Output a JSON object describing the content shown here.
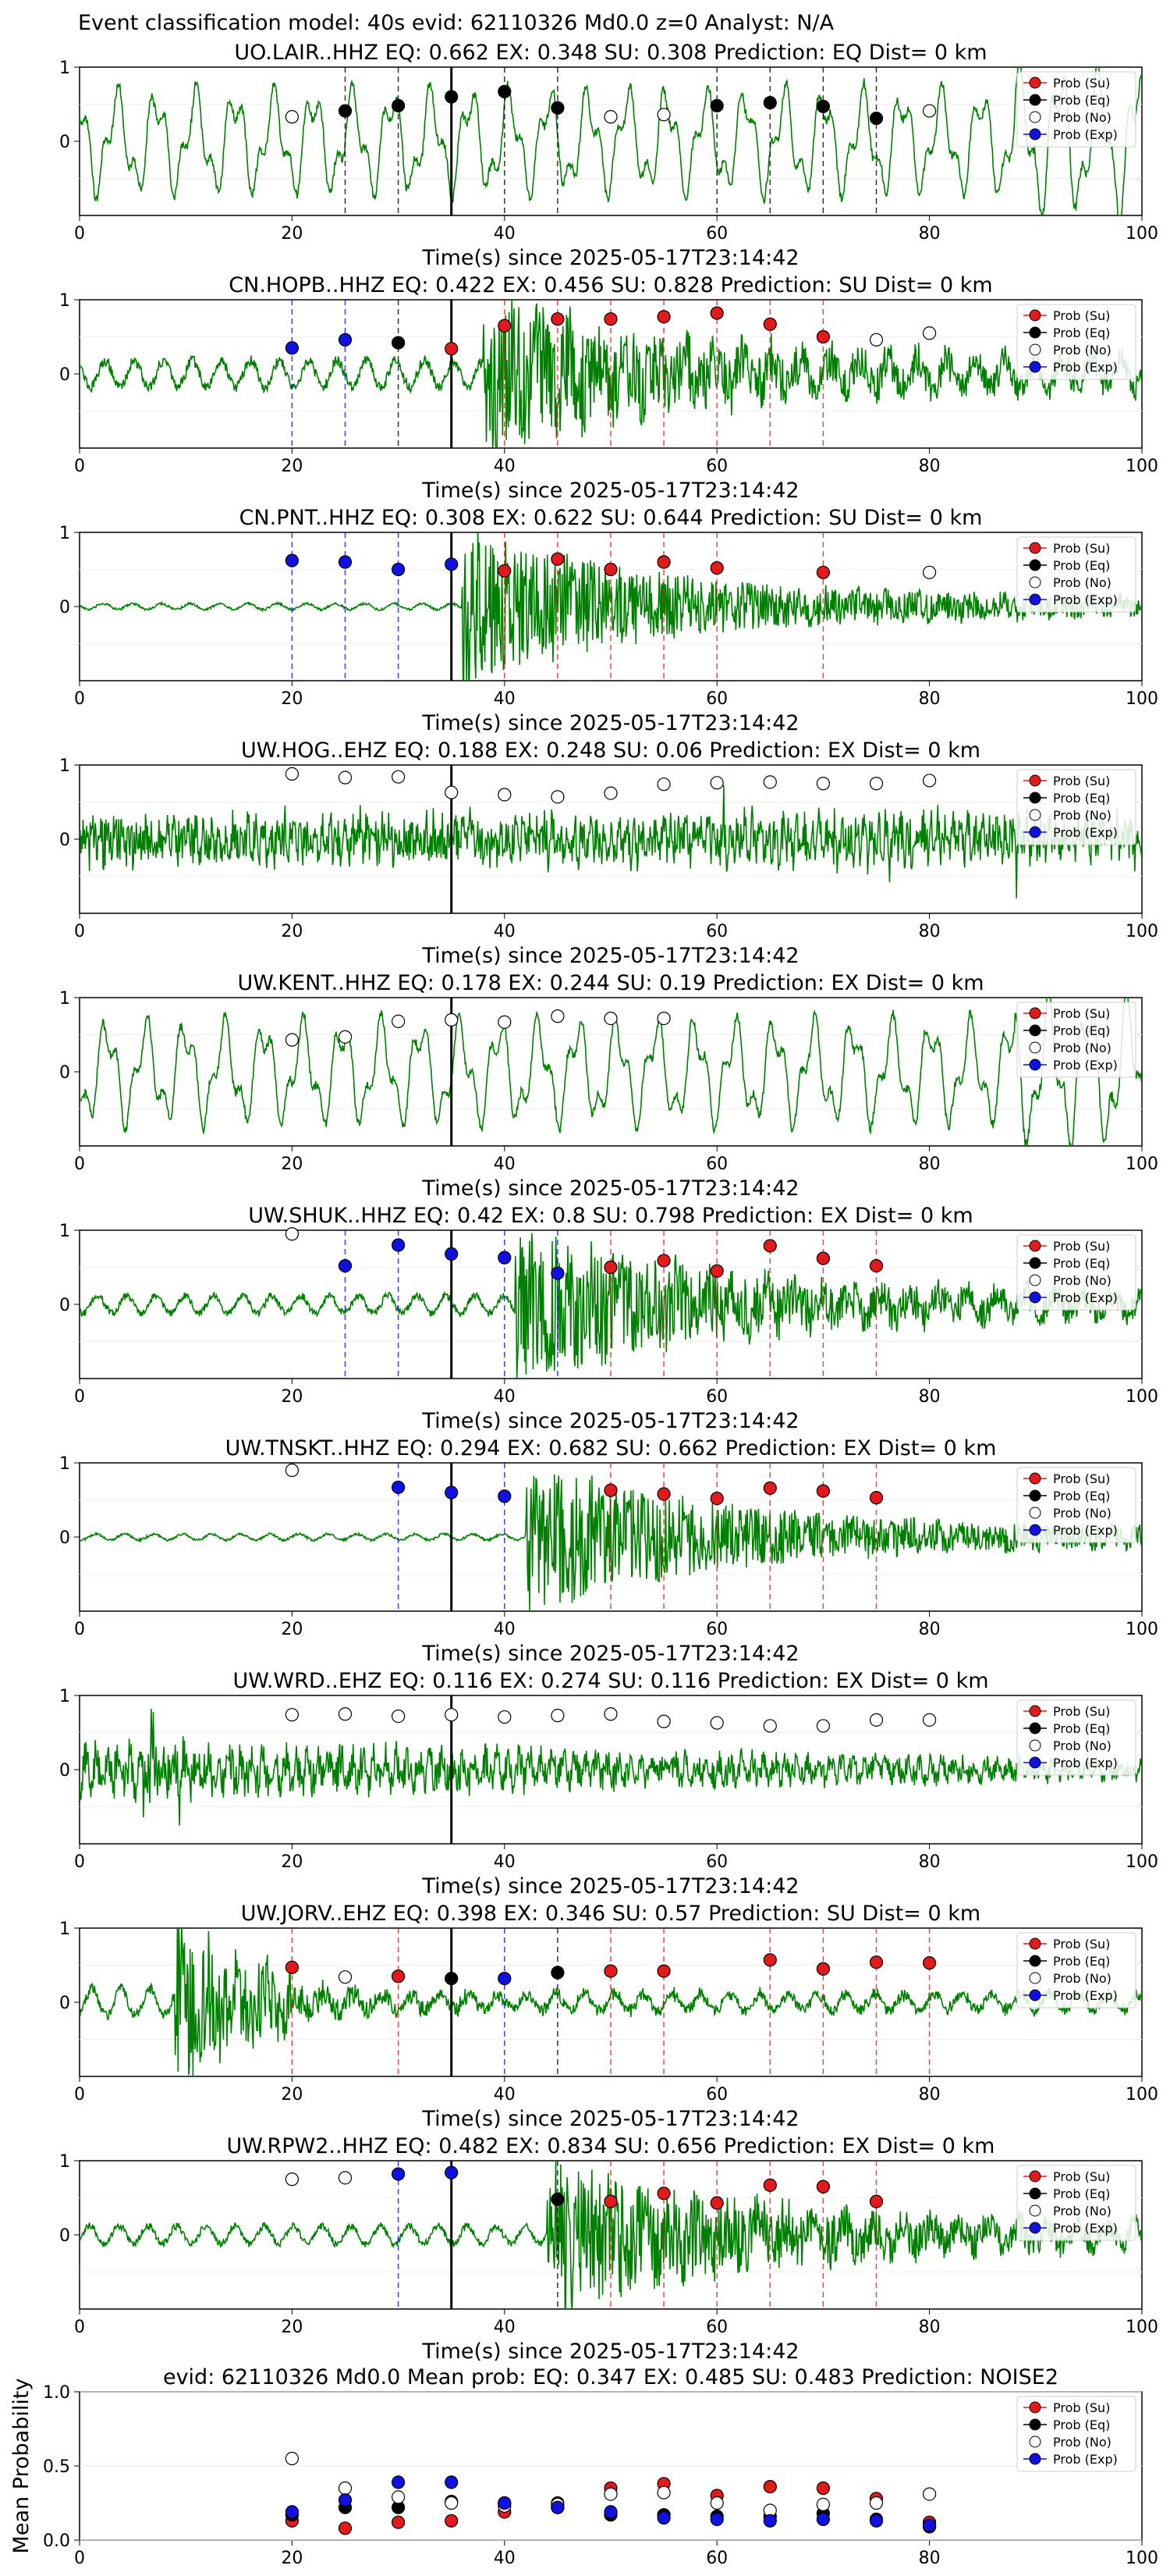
{
  "figure_title": "Event classification model: 40s evid: 62110326 Md0.0 z=0 Analyst: N/A",
  "colors": {
    "su": "#e31a1c",
    "eq": "#000000",
    "no": "#ffffff",
    "exp": "#1010e0",
    "wave": "#008000"
  },
  "legend": [
    "Prob (Su)",
    "Prob (Eq)",
    "Prob (No)",
    "Prob (Exp)"
  ],
  "chart_data": [
    {
      "type": "scatter",
      "title": "UO.LAIR..HHZ   EQ: 0.662  EX: 0.348  SU: 0.308   Prediction: EQ    Dist= 0 km",
      "xlabel": "Time(s) since 2025-05-17T23:14:42",
      "xlim": [
        0,
        100
      ],
      "ylim": [
        -1,
        1
      ],
      "xticks": [
        "0",
        "20",
        "40",
        "60",
        "80",
        "100"
      ],
      "yticks": [
        "1",
        "0"
      ],
      "waveform": {
        "style": "lowfreq",
        "onset": 0
      },
      "event_line": 35,
      "points": [
        {
          "x": 20,
          "y": 0.33,
          "cls": "no"
        },
        {
          "x": 25,
          "y": 0.41,
          "cls": "eq"
        },
        {
          "x": 30,
          "y": 0.48,
          "cls": "eq"
        },
        {
          "x": 35,
          "y": 0.6,
          "cls": "eq"
        },
        {
          "x": 40,
          "y": 0.67,
          "cls": "eq"
        },
        {
          "x": 45,
          "y": 0.45,
          "cls": "eq"
        },
        {
          "x": 50,
          "y": 0.33,
          "cls": "no"
        },
        {
          "x": 55,
          "y": 0.36,
          "cls": "no"
        },
        {
          "x": 60,
          "y": 0.48,
          "cls": "eq"
        },
        {
          "x": 65,
          "y": 0.52,
          "cls": "eq"
        },
        {
          "x": 70,
          "y": 0.47,
          "cls": "eq"
        },
        {
          "x": 75,
          "y": 0.31,
          "cls": "eq"
        },
        {
          "x": 80,
          "y": 0.41,
          "cls": "no"
        }
      ]
    },
    {
      "type": "scatter",
      "title": "CN.HOPB..HHZ   EQ: 0.422  EX: 0.456  SU: 0.828   Prediction: SU    Dist= 0 km",
      "xlabel": "Time(s) since 2025-05-17T23:14:42",
      "xlim": [
        0,
        100
      ],
      "ylim": [
        -1,
        1
      ],
      "xticks": [
        "0",
        "20",
        "40",
        "60",
        "80",
        "100"
      ],
      "yticks": [
        "1",
        "0"
      ],
      "waveform": {
        "style": "event",
        "onset": 38
      },
      "event_line": 35,
      "points": [
        {
          "x": 20,
          "y": 0.35,
          "cls": "exp"
        },
        {
          "x": 25,
          "y": 0.46,
          "cls": "exp"
        },
        {
          "x": 30,
          "y": 0.42,
          "cls": "eq"
        },
        {
          "x": 35,
          "y": 0.34,
          "cls": "su"
        },
        {
          "x": 40,
          "y": 0.65,
          "cls": "su"
        },
        {
          "x": 45,
          "y": 0.74,
          "cls": "su"
        },
        {
          "x": 50,
          "y": 0.74,
          "cls": "su"
        },
        {
          "x": 55,
          "y": 0.77,
          "cls": "su"
        },
        {
          "x": 60,
          "y": 0.82,
          "cls": "su"
        },
        {
          "x": 65,
          "y": 0.67,
          "cls": "su"
        },
        {
          "x": 70,
          "y": 0.5,
          "cls": "su"
        },
        {
          "x": 75,
          "y": 0.46,
          "cls": "no"
        },
        {
          "x": 80,
          "y": 0.55,
          "cls": "no"
        }
      ]
    },
    {
      "type": "scatter",
      "title": "CN.PNT..HHZ   EQ: 0.308  EX: 0.622  SU: 0.644   Prediction: SU    Dist= 0 km",
      "xlabel": "Time(s) since 2025-05-17T23:14:42",
      "xlim": [
        0,
        100
      ],
      "ylim": [
        -1,
        1
      ],
      "xticks": [
        "0",
        "20",
        "40",
        "60",
        "80",
        "100"
      ],
      "yticks": [
        "1",
        "0"
      ],
      "waveform": {
        "style": "quiet_event",
        "onset": 36
      },
      "event_line": 35,
      "points": [
        {
          "x": 20,
          "y": 0.62,
          "cls": "exp"
        },
        {
          "x": 25,
          "y": 0.6,
          "cls": "exp"
        },
        {
          "x": 30,
          "y": 0.5,
          "cls": "exp"
        },
        {
          "x": 35,
          "y": 0.57,
          "cls": "exp"
        },
        {
          "x": 40,
          "y": 0.48,
          "cls": "su"
        },
        {
          "x": 45,
          "y": 0.64,
          "cls": "su"
        },
        {
          "x": 50,
          "y": 0.5,
          "cls": "su"
        },
        {
          "x": 55,
          "y": 0.6,
          "cls": "su"
        },
        {
          "x": 60,
          "y": 0.52,
          "cls": "su"
        },
        {
          "x": 70,
          "y": 0.46,
          "cls": "su"
        },
        {
          "x": 80,
          "y": 0.46,
          "cls": "no"
        }
      ]
    },
    {
      "type": "scatter",
      "title": "UW.HOG..EHZ   EQ: 0.188  EX: 0.248  SU: 0.06   Prediction: EX    Dist= 0 km",
      "xlabel": "Time(s) since 2025-05-17T23:14:42",
      "xlim": [
        0,
        100
      ],
      "ylim": [
        -1,
        1
      ],
      "xticks": [
        "0",
        "20",
        "40",
        "60",
        "80",
        "100"
      ],
      "yticks": [
        "1",
        "0"
      ],
      "waveform": {
        "style": "noise",
        "onset": 0
      },
      "event_line": 35,
      "points": [
        {
          "x": 20,
          "y": 0.88,
          "cls": "no"
        },
        {
          "x": 25,
          "y": 0.83,
          "cls": "no"
        },
        {
          "x": 30,
          "y": 0.84,
          "cls": "no"
        },
        {
          "x": 35,
          "y": 0.63,
          "cls": "no"
        },
        {
          "x": 40,
          "y": 0.6,
          "cls": "no"
        },
        {
          "x": 45,
          "y": 0.57,
          "cls": "no"
        },
        {
          "x": 50,
          "y": 0.62,
          "cls": "no"
        },
        {
          "x": 55,
          "y": 0.74,
          "cls": "no"
        },
        {
          "x": 60,
          "y": 0.76,
          "cls": "no"
        },
        {
          "x": 65,
          "y": 0.77,
          "cls": "no"
        },
        {
          "x": 70,
          "y": 0.75,
          "cls": "no"
        },
        {
          "x": 75,
          "y": 0.75,
          "cls": "no"
        },
        {
          "x": 80,
          "y": 0.79,
          "cls": "no"
        }
      ]
    },
    {
      "type": "scatter",
      "title": "UW.KENT..HHZ   EQ: 0.178  EX: 0.244  SU: 0.19   Prediction: EX    Dist= 0 km",
      "xlabel": "Time(s) since 2025-05-17T23:14:42",
      "xlim": [
        0,
        100
      ],
      "ylim": [
        -1,
        1
      ],
      "xticks": [
        "0",
        "20",
        "40",
        "60",
        "80",
        "100"
      ],
      "yticks": [
        "1",
        "0"
      ],
      "waveform": {
        "style": "lowfreq",
        "onset": 0
      },
      "event_line": 35,
      "points": [
        {
          "x": 20,
          "y": 0.43,
          "cls": "no"
        },
        {
          "x": 25,
          "y": 0.47,
          "cls": "no"
        },
        {
          "x": 30,
          "y": 0.68,
          "cls": "no"
        },
        {
          "x": 35,
          "y": 0.7,
          "cls": "no"
        },
        {
          "x": 40,
          "y": 0.67,
          "cls": "no"
        },
        {
          "x": 45,
          "y": 0.75,
          "cls": "no"
        },
        {
          "x": 50,
          "y": 0.72,
          "cls": "no"
        },
        {
          "x": 55,
          "y": 0.72,
          "cls": "no"
        }
      ]
    },
    {
      "type": "scatter",
      "title": "UW.SHUK..HHZ   EQ: 0.42  EX: 0.8  SU: 0.798   Prediction: EX    Dist= 0 km",
      "xlabel": "Time(s) since 2025-05-17T23:14:42",
      "xlim": [
        0,
        100
      ],
      "ylim": [
        -1,
        1
      ],
      "xticks": [
        "0",
        "20",
        "40",
        "60",
        "80",
        "100"
      ],
      "yticks": [
        "1",
        "0"
      ],
      "waveform": {
        "style": "swell_event",
        "onset": 41
      },
      "event_line": 35,
      "points": [
        {
          "x": 20,
          "y": 0.95,
          "cls": "no"
        },
        {
          "x": 25,
          "y": 0.52,
          "cls": "exp"
        },
        {
          "x": 30,
          "y": 0.8,
          "cls": "exp"
        },
        {
          "x": 35,
          "y": 0.68,
          "cls": "exp"
        },
        {
          "x": 40,
          "y": 0.63,
          "cls": "exp"
        },
        {
          "x": 45,
          "y": 0.42,
          "cls": "exp"
        },
        {
          "x": 50,
          "y": 0.5,
          "cls": "su"
        },
        {
          "x": 55,
          "y": 0.59,
          "cls": "su"
        },
        {
          "x": 60,
          "y": 0.45,
          "cls": "su"
        },
        {
          "x": 65,
          "y": 0.79,
          "cls": "su"
        },
        {
          "x": 70,
          "y": 0.62,
          "cls": "su"
        },
        {
          "x": 75,
          "y": 0.52,
          "cls": "su"
        }
      ]
    },
    {
      "type": "scatter",
      "title": "UW.TNSKT..HHZ   EQ: 0.294  EX: 0.682  SU: 0.662   Prediction: EX    Dist= 0 km",
      "xlabel": "Time(s) since 2025-05-17T23:14:42",
      "xlim": [
        0,
        100
      ],
      "ylim": [
        -1,
        1
      ],
      "xticks": [
        "0",
        "20",
        "40",
        "60",
        "80",
        "100"
      ],
      "yticks": [
        "1",
        "0"
      ],
      "waveform": {
        "style": "quiet_event",
        "onset": 42
      },
      "event_line": 35,
      "points": [
        {
          "x": 20,
          "y": 0.9,
          "cls": "no"
        },
        {
          "x": 30,
          "y": 0.67,
          "cls": "exp"
        },
        {
          "x": 35,
          "y": 0.6,
          "cls": "exp"
        },
        {
          "x": 40,
          "y": 0.55,
          "cls": "exp"
        },
        {
          "x": 50,
          "y": 0.63,
          "cls": "su"
        },
        {
          "x": 55,
          "y": 0.58,
          "cls": "su"
        },
        {
          "x": 60,
          "y": 0.52,
          "cls": "su"
        },
        {
          "x": 65,
          "y": 0.66,
          "cls": "su"
        },
        {
          "x": 70,
          "y": 0.62,
          "cls": "su"
        },
        {
          "x": 75,
          "y": 0.53,
          "cls": "su"
        }
      ]
    },
    {
      "type": "scatter",
      "title": "UW.WRD..EHZ   EQ: 0.116  EX: 0.274  SU: 0.116   Prediction: EX    Dist= 0 km",
      "xlabel": "Time(s) since 2025-05-17T23:14:42",
      "xlim": [
        0,
        100
      ],
      "ylim": [
        -1,
        1
      ],
      "xticks": [
        "0",
        "20",
        "40",
        "60",
        "80",
        "100"
      ],
      "yticks": [
        "1",
        "0"
      ],
      "waveform": {
        "style": "noise_decay",
        "onset": 0
      },
      "event_line": 35,
      "points": [
        {
          "x": 20,
          "y": 0.74,
          "cls": "no"
        },
        {
          "x": 25,
          "y": 0.75,
          "cls": "no"
        },
        {
          "x": 30,
          "y": 0.72,
          "cls": "no"
        },
        {
          "x": 35,
          "y": 0.74,
          "cls": "no"
        },
        {
          "x": 40,
          "y": 0.71,
          "cls": "no"
        },
        {
          "x": 45,
          "y": 0.73,
          "cls": "no"
        },
        {
          "x": 50,
          "y": 0.75,
          "cls": "no"
        },
        {
          "x": 55,
          "y": 0.65,
          "cls": "no"
        },
        {
          "x": 60,
          "y": 0.63,
          "cls": "no"
        },
        {
          "x": 65,
          "y": 0.59,
          "cls": "no"
        },
        {
          "x": 70,
          "y": 0.59,
          "cls": "no"
        },
        {
          "x": 75,
          "y": 0.67,
          "cls": "no"
        },
        {
          "x": 80,
          "y": 0.67,
          "cls": "no"
        }
      ]
    },
    {
      "type": "scatter",
      "title": "UW.JORV..EHZ   EQ: 0.398  EX: 0.346  SU: 0.57   Prediction: SU    Dist= 0 km",
      "xlabel": "Time(s) since 2025-05-17T23:14:42",
      "xlim": [
        0,
        100
      ],
      "ylim": [
        -1,
        1
      ],
      "xticks": [
        "0",
        "20",
        "40",
        "60",
        "80",
        "100"
      ],
      "yticks": [
        "1",
        "0"
      ],
      "waveform": {
        "style": "early_event",
        "onset": 9
      },
      "event_line": 35,
      "points": [
        {
          "x": 20,
          "y": 0.47,
          "cls": "su"
        },
        {
          "x": 25,
          "y": 0.34,
          "cls": "no"
        },
        {
          "x": 30,
          "y": 0.35,
          "cls": "su"
        },
        {
          "x": 35,
          "y": 0.32,
          "cls": "eq"
        },
        {
          "x": 40,
          "y": 0.32,
          "cls": "exp"
        },
        {
          "x": 45,
          "y": 0.4,
          "cls": "eq"
        },
        {
          "x": 50,
          "y": 0.42,
          "cls": "su"
        },
        {
          "x": 55,
          "y": 0.42,
          "cls": "su"
        },
        {
          "x": 65,
          "y": 0.57,
          "cls": "su"
        },
        {
          "x": 70,
          "y": 0.45,
          "cls": "su"
        },
        {
          "x": 75,
          "y": 0.54,
          "cls": "su"
        },
        {
          "x": 80,
          "y": 0.53,
          "cls": "su"
        }
      ]
    },
    {
      "type": "scatter",
      "title": "UW.RPW2..HHZ   EQ: 0.482  EX: 0.834  SU: 0.656   Prediction: EX    Dist= 0 km",
      "xlabel": "Time(s) since 2025-05-17T23:14:42",
      "xlim": [
        0,
        100
      ],
      "ylim": [
        -1,
        1
      ],
      "xticks": [
        "0",
        "20",
        "40",
        "60",
        "80",
        "100"
      ],
      "yticks": [
        "1",
        "0"
      ],
      "waveform": {
        "style": "swell_event",
        "onset": 44
      },
      "event_line": 35,
      "points": [
        {
          "x": 20,
          "y": 0.75,
          "cls": "no"
        },
        {
          "x": 25,
          "y": 0.77,
          "cls": "no"
        },
        {
          "x": 30,
          "y": 0.82,
          "cls": "exp"
        },
        {
          "x": 35,
          "y": 0.84,
          "cls": "exp"
        },
        {
          "x": 45,
          "y": 0.48,
          "cls": "eq"
        },
        {
          "x": 50,
          "y": 0.45,
          "cls": "su"
        },
        {
          "x": 55,
          "y": 0.56,
          "cls": "su"
        },
        {
          "x": 60,
          "y": 0.43,
          "cls": "su"
        },
        {
          "x": 65,
          "y": 0.67,
          "cls": "su"
        },
        {
          "x": 70,
          "y": 0.65,
          "cls": "su"
        },
        {
          "x": 75,
          "y": 0.45,
          "cls": "su"
        }
      ]
    },
    {
      "type": "scatter",
      "title": "evid: 62110326  Md0.0   Mean prob:   EQ: 0.347  EX: 0.485  SU: 0.483   Prediction: NOISE2",
      "xlabel": "",
      "ylabel": "Mean Probability",
      "xlim": [
        0,
        100
      ],
      "ylim": [
        0,
        1
      ],
      "xticks": [
        "0",
        "20",
        "40",
        "60",
        "80",
        "100"
      ],
      "yticks": [
        "1.0",
        "0.5",
        "0.0"
      ],
      "series": [
        {
          "name": "Prob (Su)",
          "cls": "su",
          "x": [
            20,
            25,
            30,
            35,
            40,
            45,
            50,
            55,
            60,
            65,
            70,
            75,
            80
          ],
          "y": [
            0.13,
            0.08,
            0.12,
            0.13,
            0.19,
            0.25,
            0.35,
            0.38,
            0.3,
            0.36,
            0.35,
            0.28,
            0.12
          ]
        },
        {
          "name": "Prob (Eq)",
          "cls": "eq",
          "x": [
            20,
            25,
            30,
            35,
            40,
            45,
            50,
            55,
            60,
            65,
            70,
            75,
            80
          ],
          "y": [
            0.17,
            0.22,
            0.22,
            0.26,
            0.25,
            0.22,
            0.17,
            0.17,
            0.16,
            0.16,
            0.18,
            0.14,
            0.09
          ]
        },
        {
          "name": "Prob (No)",
          "cls": "no",
          "x": [
            20,
            25,
            30,
            35,
            40,
            45,
            50,
            55,
            60,
            65,
            70,
            75,
            80
          ],
          "y": [
            0.55,
            0.35,
            0.29,
            0.25,
            0.23,
            0.24,
            0.31,
            0.32,
            0.25,
            0.2,
            0.24,
            0.25,
            0.31
          ]
        },
        {
          "name": "Prob (Exp)",
          "cls": "exp",
          "x": [
            20,
            25,
            30,
            35,
            40,
            45,
            50,
            55,
            60,
            65,
            70,
            75,
            80
          ],
          "y": [
            0.19,
            0.27,
            0.39,
            0.39,
            0.25,
            0.22,
            0.19,
            0.15,
            0.14,
            0.13,
            0.14,
            0.13,
            0.1
          ]
        }
      ]
    }
  ]
}
